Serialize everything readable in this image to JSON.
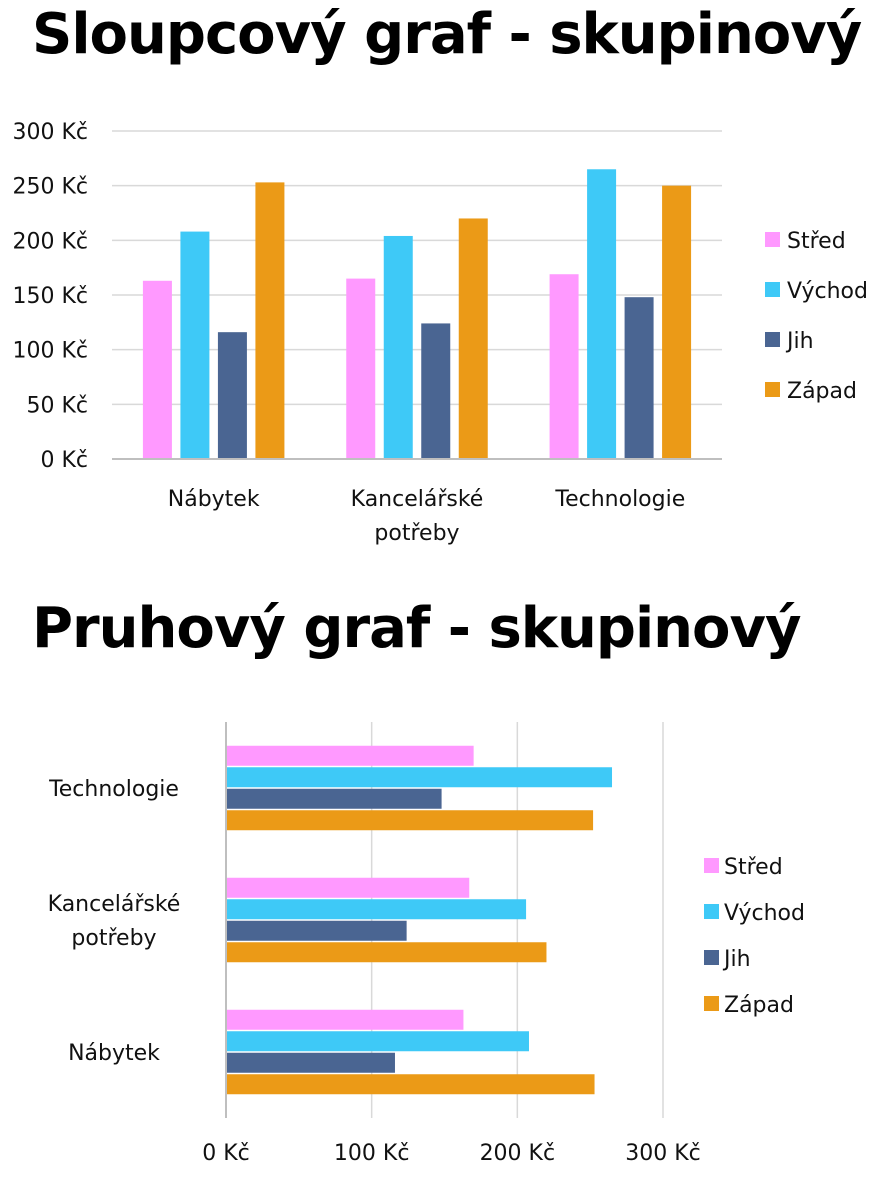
{
  "chart_data": [
    {
      "type": "bar",
      "orientation": "vertical",
      "title": "Sloupcový graf - skupinový",
      "categories": [
        "Nábytek",
        "Kancelářské potřeby",
        "Technologie"
      ],
      "category_lines": [
        [
          "Nábytek"
        ],
        [
          "Kancelářské",
          "potřeby"
        ],
        [
          "Technologie"
        ]
      ],
      "series": [
        {
          "name": "Střed",
          "color": "#ff99ff",
          "values": [
            163,
            165,
            169
          ]
        },
        {
          "name": "Východ",
          "color": "#3ec9f7",
          "values": [
            208,
            204,
            265
          ]
        },
        {
          "name": "Jih",
          "color": "#4a6592",
          "values": [
            116,
            124,
            148
          ]
        },
        {
          "name": "Západ",
          "color": "#eb9a17",
          "values": [
            253,
            220,
            250
          ]
        }
      ],
      "y_ticks": [
        0,
        50,
        100,
        150,
        200,
        250,
        300
      ],
      "y_tick_labels": [
        "0 Kč",
        "50 Kč",
        "100 Kč",
        "150 Kč",
        "200 Kč",
        "250 Kč",
        "300 Kč"
      ],
      "ylim": [
        0,
        300
      ],
      "grid": true,
      "legend_position": "right"
    },
    {
      "type": "bar",
      "orientation": "horizontal",
      "title": "Pruhový graf - skupinový",
      "categories": [
        "Technologie",
        "Kancelářské potřeby",
        "Nábytek"
      ],
      "category_lines": [
        [
          "Technologie"
        ],
        [
          "Kancelářské",
          "potřeby"
        ],
        [
          "Nábytek"
        ]
      ],
      "series": [
        {
          "name": "Střed",
          "color": "#ff99ff",
          "values": [
            170,
            167,
            163
          ]
        },
        {
          "name": "Východ",
          "color": "#3ec9f7",
          "values": [
            265,
            206,
            208
          ]
        },
        {
          "name": "Jih",
          "color": "#4a6592",
          "values": [
            148,
            124,
            116
          ]
        },
        {
          "name": "Západ",
          "color": "#eb9a17",
          "values": [
            252,
            220,
            253
          ]
        }
      ],
      "x_ticks": [
        0,
        100,
        200,
        300
      ],
      "x_tick_labels": [
        "0 Kč",
        "100 Kč",
        "200 Kč",
        "300 Kč"
      ],
      "xlim": [
        0,
        300
      ],
      "grid": true,
      "legend_position": "right"
    }
  ]
}
